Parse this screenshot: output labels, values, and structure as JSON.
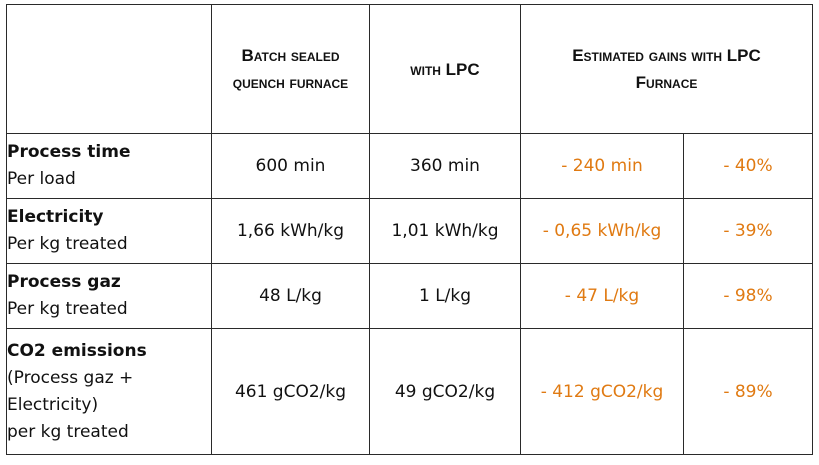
{
  "header": {
    "col1": "",
    "col2": "Batch sealed quench furnace",
    "col3": "with LPC",
    "col4": "Estimated gains with LPC Furnace"
  },
  "rows": [
    {
      "title": "Process time",
      "sub": [
        "Per load"
      ],
      "batch": "600 min",
      "lpc": "360 min",
      "gain_abs": "- 240 min",
      "gain_pct": "- 40%"
    },
    {
      "title": "Electricity",
      "sub": [
        "Per kg treated"
      ],
      "batch": "1,66 kWh/kg",
      "lpc": "1,01 kWh/kg",
      "gain_abs": "- 0,65 kWh/kg",
      "gain_pct": "- 39%"
    },
    {
      "title": "Process gaz",
      "sub": [
        "Per kg treated"
      ],
      "batch": "48 L/kg",
      "lpc": "1 L/kg",
      "gain_abs": "- 47 L/kg",
      "gain_pct": "- 98%"
    },
    {
      "title": "CO2 emissions",
      "sub": [
        "(Process gaz +",
        "Electricity)",
        "per kg treated"
      ],
      "batch": "461 gCO2/kg",
      "lpc": "49 gCO2/kg",
      "gain_abs": "- 412 gCO2/kg",
      "gain_pct": "- 89%"
    }
  ],
  "colors": {
    "gain_text": "#e07a12",
    "border": "#2a2a2a",
    "text": "#111111"
  }
}
